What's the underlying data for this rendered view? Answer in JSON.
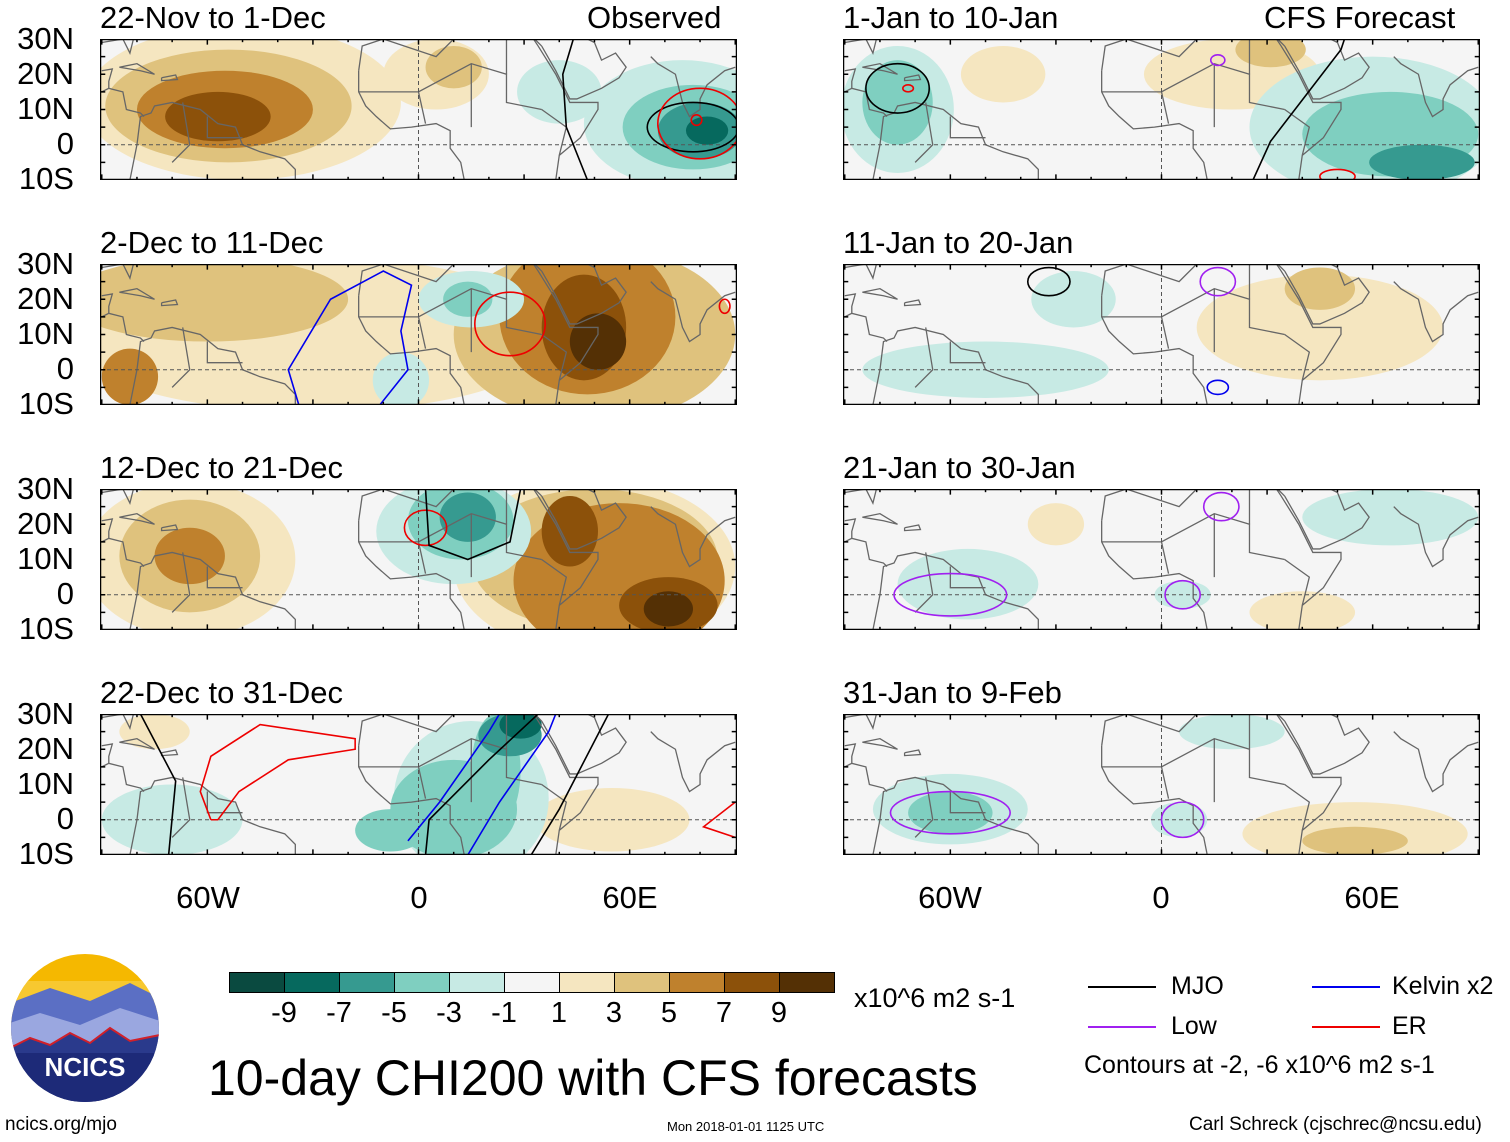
{
  "title": "10-day CHI200 with CFS forecasts",
  "site": "ncics.org/mjo",
  "timestamp": "Mon 2018-01-01 1125 UTC",
  "author": "Carl Schreck (cjschrec@ncsu.edu)",
  "logo_text": "NCICS",
  "observed_label": "Observed",
  "forecast_label": "CFS Forecast",
  "lat_labels": [
    "30N",
    "20N",
    "10N",
    "0",
    "10S"
  ],
  "lon_labels": [
    "60W",
    "0",
    "60E"
  ],
  "colorbar": {
    "units": "x10^6 m2 s-1",
    "tick_labels": [
      "-9",
      "-7",
      "-5",
      "-3",
      "-1",
      "1",
      "3",
      "5",
      "7",
      "9"
    ],
    "colors": [
      "#0a4a40",
      "#06695e",
      "#369a90",
      "#7fcfc0",
      "#c7eae4",
      "#f5f5f5",
      "#f5e6c0",
      "#dfc27d",
      "#bf812d",
      "#8c510a",
      "#543005"
    ]
  },
  "legend": {
    "items": [
      {
        "label": "MJO",
        "color": "#000000"
      },
      {
        "label": "Kelvin x2",
        "color": "#0000ee"
      },
      {
        "label": "Low",
        "color": "#a020f0"
      },
      {
        "label": "ER",
        "color": "#ee0000"
      }
    ],
    "note": "Contours at -2, -6 x10^6 m2 s-1"
  },
  "chart_data": {
    "type": "map",
    "lon_range": [
      -90,
      90
    ],
    "lat_range": [
      -10,
      30
    ],
    "panels": [
      {
        "title": "22-Nov to 1-Dec",
        "anom": [
          {
            "lon": -50,
            "lat": 12,
            "rlon": 45,
            "rlat": 22,
            "level": 2
          },
          {
            "lon": -54,
            "lat": 11,
            "rlon": 35,
            "rlat": 16,
            "level": 4
          },
          {
            "lon": -55,
            "lat": 10,
            "rlon": 25,
            "rlat": 11,
            "level": 6
          },
          {
            "lon": -57,
            "lat": 8,
            "rlon": 15,
            "rlat": 7,
            "level": 8
          },
          {
            "lon": 5,
            "lat": 20,
            "rlon": 15,
            "rlat": 10,
            "level": 2
          },
          {
            "lon": 10,
            "lat": 22,
            "rlon": 8,
            "rlat": 6,
            "level": 4
          },
          {
            "lon": 40,
            "lat": 15,
            "rlon": 12,
            "rlat": 9,
            "level": -2
          },
          {
            "lon": 75,
            "lat": 6,
            "rlon": 28,
            "rlat": 18,
            "level": -2
          },
          {
            "lon": 78,
            "lat": 5,
            "rlon": 20,
            "rlat": 12,
            "level": -4
          },
          {
            "lon": 80,
            "lat": 4,
            "rlon": 12,
            "rlat": 8,
            "level": -6
          },
          {
            "lon": 82,
            "lat": 4,
            "rlon": 6,
            "rlat": 4,
            "level": -8
          }
        ],
        "contours": [
          {
            "type": "MJO",
            "ellipse": [
              78,
              5,
              13,
              7
            ]
          },
          {
            "type": "ER",
            "ellipse": [
              80,
              6,
              12,
              10
            ]
          },
          {
            "type": "ER",
            "ellipse": [
              79,
              7,
              1.5,
              1.5
            ]
          },
          {
            "type": "MJO",
            "line": [
              [
                44,
                30
              ],
              [
                41,
                20
              ],
              [
                42,
                5
              ],
              [
                48,
                -10
              ]
            ]
          }
        ]
      },
      {
        "title": "2-Dec to 11-Dec",
        "anom": [
          {
            "lon": -30,
            "lat": 10,
            "rlon": 70,
            "rlat": 22,
            "level": 2
          },
          {
            "lon": -60,
            "lat": 20,
            "rlon": 40,
            "rlat": 12,
            "level": 4
          },
          {
            "lon": -82,
            "lat": -2,
            "rlon": 8,
            "rlat": 8,
            "level": 6
          },
          {
            "lon": 50,
            "lat": 10,
            "rlon": 40,
            "rlat": 25,
            "level": 4
          },
          {
            "lon": 48,
            "lat": 15,
            "rlon": 25,
            "rlat": 22,
            "level": 6
          },
          {
            "lon": 47,
            "lat": 12,
            "rlon": 12,
            "rlat": 15,
            "level": 8
          },
          {
            "lon": 51,
            "lat": 8,
            "rlon": 8,
            "rlat": 8,
            "level": 10
          },
          {
            "lon": 15,
            "lat": 20,
            "rlon": 15,
            "rlat": 8,
            "level": -2
          },
          {
            "lon": 14,
            "lat": 20,
            "rlon": 7,
            "rlat": 5,
            "level": -4
          },
          {
            "lon": -5,
            "lat": -3,
            "rlon": 8,
            "rlat": 8,
            "level": -2
          }
        ],
        "contours": [
          {
            "type": "Kelvin",
            "line": [
              [
                -34,
                -10
              ],
              [
                -37,
                0
              ],
              [
                -25,
                20
              ],
              [
                -10,
                28
              ],
              [
                -2,
                24
              ],
              [
                -5,
                11
              ],
              [
                -3,
                0
              ],
              [
                -11,
                -10
              ]
            ]
          },
          {
            "type": "ER",
            "ellipse": [
              26,
              13,
              10,
              9
            ]
          },
          {
            "type": "ER",
            "ellipse": [
              87,
              18,
              1.5,
              2
            ]
          }
        ]
      },
      {
        "title": "12-Dec to 21-Dec",
        "anom": [
          {
            "lon": -65,
            "lat": 10,
            "rlon": 30,
            "rlat": 22,
            "level": 2
          },
          {
            "lon": -65,
            "lat": 11,
            "rlon": 20,
            "rlat": 16,
            "level": 4
          },
          {
            "lon": -65,
            "lat": 11,
            "rlon": 10,
            "rlat": 8,
            "level": 6
          },
          {
            "lon": 50,
            "lat": 8,
            "rlon": 40,
            "rlat": 25,
            "level": 2
          },
          {
            "lon": 50,
            "lat": 10,
            "rlon": 35,
            "rlat": 20,
            "level": 4
          },
          {
            "lon": 57,
            "lat": 4,
            "rlon": 30,
            "rlat": 22,
            "level": 6
          },
          {
            "lon": 43,
            "lat": 18,
            "rlon": 8,
            "rlat": 10,
            "level": 8
          },
          {
            "lon": 71,
            "lat": -3,
            "rlon": 14,
            "rlat": 8,
            "level": 8
          },
          {
            "lon": 71,
            "lat": -4,
            "rlon": 7,
            "rlat": 5,
            "level": 10
          },
          {
            "lon": 10,
            "lat": 18,
            "rlon": 22,
            "rlat": 15,
            "level": -2
          },
          {
            "lon": 12,
            "lat": 21,
            "rlon": 15,
            "rlat": 11,
            "level": -4
          },
          {
            "lon": 14,
            "lat": 22,
            "rlon": 8,
            "rlat": 7,
            "level": -6
          }
        ],
        "contours": [
          {
            "type": "ER",
            "ellipse": [
              2,
              19,
              6,
              5
            ]
          },
          {
            "type": "MJO",
            "line": [
              [
                2,
                30
              ],
              [
                3,
                14
              ],
              [
                14,
                10
              ],
              [
                26,
                15
              ],
              [
                29,
                30
              ]
            ]
          }
        ]
      },
      {
        "title": "22-Dec to 31-Dec",
        "anom": [
          {
            "lon": -70,
            "lat": 0,
            "rlon": 20,
            "rlat": 10,
            "level": -2
          },
          {
            "lon": -75,
            "lat": 25,
            "rlon": 10,
            "rlat": 5,
            "level": 2
          },
          {
            "lon": 55,
            "lat": 0,
            "rlon": 22,
            "rlat": 9,
            "level": 2
          },
          {
            "lon": 15,
            "lat": 6,
            "rlon": 22,
            "rlat": 22,
            "level": -2
          },
          {
            "lon": 10,
            "lat": 3,
            "rlon": 18,
            "rlat": 14,
            "level": -4
          },
          {
            "lon": -8,
            "lat": -3,
            "rlon": 10,
            "rlat": 6,
            "level": -4
          },
          {
            "lon": 22,
            "lat": 14,
            "rlon": 7,
            "rlat": 16,
            "level": -4
          },
          {
            "lon": 26,
            "lat": 24,
            "rlon": 9,
            "rlat": 6,
            "level": -6
          },
          {
            "lon": 29,
            "lat": 27,
            "rlon": 6,
            "rlat": 4,
            "level": -8
          }
        ],
        "contours": [
          {
            "type": "ER",
            "line": [
              [
                -59,
                0
              ],
              [
                -62,
                8
              ],
              [
                -59,
                18
              ],
              [
                -45,
                27
              ],
              [
                -18,
                23
              ],
              [
                -18,
                20
              ],
              [
                -37,
                17
              ],
              [
                -51,
                8
              ],
              [
                -57,
                0
              ],
              [
                -59,
                0
              ]
            ]
          },
          {
            "type": "MJO",
            "line": [
              [
                -79,
                30
              ],
              [
                -69,
                11
              ],
              [
                -71,
                -10
              ]
            ]
          },
          {
            "type": "MJO",
            "line": [
              [
                2,
                -10
              ],
              [
                3,
                0
              ],
              [
                20,
                17
              ],
              [
                34,
                30
              ]
            ]
          },
          {
            "type": "Kelvin",
            "line": [
              [
                -3,
                -6
              ],
              [
                6,
                5
              ],
              [
                20,
                25
              ],
              [
                23,
                30
              ]
            ]
          },
          {
            "type": "Kelvin",
            "line": [
              [
                14,
                -10
              ],
              [
                23,
                5
              ],
              [
                37,
                25
              ],
              [
                39,
                30
              ]
            ]
          },
          {
            "type": "MJO",
            "line": [
              [
                32,
                -10
              ],
              [
                40,
                3
              ],
              [
                54,
                30
              ]
            ]
          },
          {
            "type": "ER",
            "line": [
              [
                90,
                5
              ],
              [
                81,
                -2
              ],
              [
                90,
                -5
              ]
            ]
          }
        ]
      },
      {
        "title": "1-Jan to 10-Jan",
        "anom": [
          {
            "lon": -75,
            "lat": 10,
            "rlon": 16,
            "rlat": 18,
            "level": -2
          },
          {
            "lon": -75,
            "lat": 12,
            "rlon": 10,
            "rlat": 12,
            "level": -4
          },
          {
            "lon": 20,
            "lat": 20,
            "rlon": 25,
            "rlat": 10,
            "level": 2
          },
          {
            "lon": -45,
            "lat": 20,
            "rlon": 12,
            "rlat": 8,
            "level": 2
          },
          {
            "lon": 31,
            "lat": 27,
            "rlon": 10,
            "rlat": 5,
            "level": 4
          },
          {
            "lon": 60,
            "lat": 5,
            "rlon": 35,
            "rlat": 20,
            "level": -2
          },
          {
            "lon": 65,
            "lat": 3,
            "rlon": 25,
            "rlat": 12,
            "level": -4
          },
          {
            "lon": 74,
            "lat": -5,
            "rlon": 15,
            "rlat": 5,
            "level": -6
          }
        ],
        "contours": [
          {
            "type": "MJO",
            "ellipse": [
              -75,
              16,
              9,
              7
            ]
          },
          {
            "type": "ER",
            "ellipse": [
              -72,
              16,
              1.5,
              1
            ]
          },
          {
            "type": "Low",
            "ellipse": [
              16,
              24,
              2,
              1.5
            ]
          },
          {
            "type": "MJO",
            "line": [
              [
                26,
                -10
              ],
              [
                31,
                1
              ],
              [
                51,
                27
              ],
              [
                52,
                30
              ]
            ]
          },
          {
            "type": "ER",
            "ellipse": [
              50,
              -9,
              5,
              2
            ]
          }
        ]
      },
      {
        "title": "11-Jan to 20-Jan",
        "anom": [
          {
            "lon": -25,
            "lat": 20,
            "rlon": 12,
            "rlat": 8,
            "level": -2
          },
          {
            "lon": -50,
            "lat": 0,
            "rlon": 35,
            "rlat": 8,
            "level": -2
          },
          {
            "lon": 45,
            "lat": 12,
            "rlon": 35,
            "rlat": 15,
            "level": 2
          },
          {
            "lon": 45,
            "lat": 23,
            "rlon": 10,
            "rlat": 6,
            "level": 4
          }
        ],
        "contours": [
          {
            "type": "MJO",
            "ellipse": [
              -32,
              25,
              6,
              4
            ]
          },
          {
            "type": "Low",
            "ellipse": [
              16,
              25,
              5,
              4
            ]
          },
          {
            "type": "Kelvin",
            "ellipse": [
              16,
              -5,
              3,
              2
            ]
          }
        ]
      },
      {
        "title": "21-Jan to 30-Jan",
        "anom": [
          {
            "lon": -55,
            "lat": 3,
            "rlon": 20,
            "rlat": 10,
            "level": -2
          },
          {
            "lon": -30,
            "lat": 20,
            "rlon": 8,
            "rlat": 6,
            "level": 2
          },
          {
            "lon": 65,
            "lat": 22,
            "rlon": 25,
            "rlat": 8,
            "level": -2
          },
          {
            "lon": 40,
            "lat": -5,
            "rlon": 15,
            "rlat": 6,
            "level": 2
          },
          {
            "lon": 6,
            "lat": 0,
            "rlon": 8,
            "rlat": 4,
            "level": -2
          }
        ],
        "contours": [
          {
            "type": "Low",
            "ellipse": [
              -60,
              0,
              16,
              6
            ]
          },
          {
            "type": "Low",
            "ellipse": [
              17,
              25,
              5,
              4
            ]
          },
          {
            "type": "Low",
            "ellipse": [
              6,
              0,
              5,
              4
            ]
          }
        ]
      },
      {
        "title": "31-Jan to 9-Feb",
        "anom": [
          {
            "lon": -60,
            "lat": 3,
            "rlon": 22,
            "rlat": 10,
            "level": -2
          },
          {
            "lon": -60,
            "lat": 2,
            "rlon": 12,
            "rlat": 6,
            "level": -4
          },
          {
            "lon": 20,
            "lat": 25,
            "rlon": 15,
            "rlat": 5,
            "level": -2
          },
          {
            "lon": 5,
            "lat": 0,
            "rlon": 8,
            "rlat": 5,
            "level": -2
          },
          {
            "lon": 55,
            "lat": -4,
            "rlon": 32,
            "rlat": 9,
            "level": 2
          },
          {
            "lon": 55,
            "lat": -6,
            "rlon": 15,
            "rlat": 4,
            "level": 4
          }
        ],
        "contours": [
          {
            "type": "Low",
            "ellipse": [
              -60,
              2,
              17,
              6
            ]
          },
          {
            "type": "Low",
            "ellipse": [
              6,
              0,
              6,
              5
            ]
          }
        ]
      }
    ]
  }
}
